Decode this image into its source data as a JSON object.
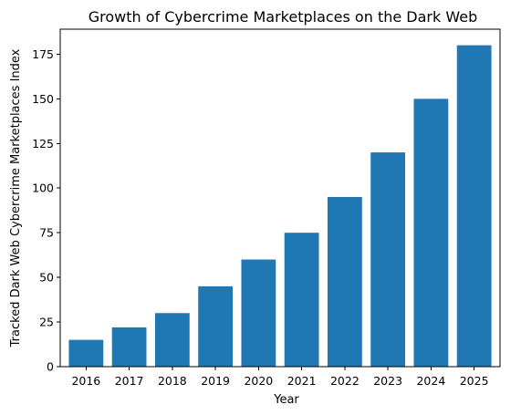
{
  "chart_data": {
    "type": "bar",
    "title": "Growth of Cybercrime Marketplaces on the Dark Web",
    "xlabel": "Year",
    "ylabel": "Tracked Dark Web Cybercrime Marketplaces Index",
    "categories": [
      "2016",
      "2017",
      "2018",
      "2019",
      "2020",
      "2021",
      "2022",
      "2023",
      "2024",
      "2025"
    ],
    "values": [
      15,
      22,
      30,
      45,
      60,
      75,
      95,
      120,
      150,
      180
    ],
    "ylim": [
      0,
      189
    ],
    "yticks": [
      0,
      25,
      50,
      75,
      100,
      125,
      150,
      175
    ],
    "grid": false,
    "legend": "none",
    "bar_color": "#1f77b4"
  }
}
